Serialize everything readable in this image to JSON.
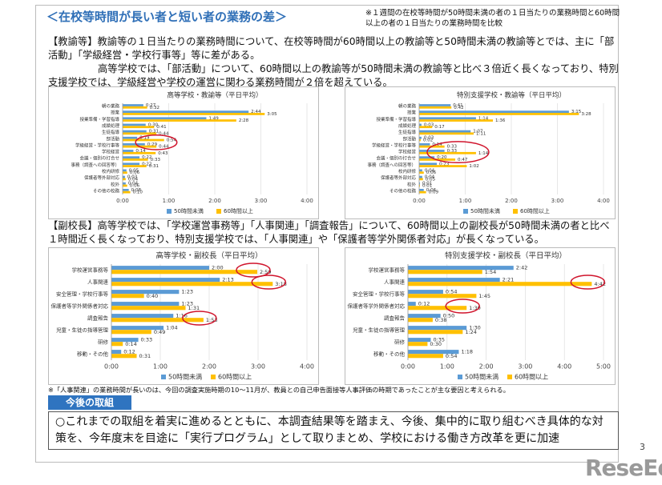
{
  "title": "＜在校等時間が長い者と短い者の業務の差＞",
  "note": "※１週間の在校等時間が50時間未満の者の１日当たりの業務時間と60時間以上の者の１日当たりの業務時間を比較",
  "paragraphs": [
    "【教諭等】教諭等の１日当たりの業務時間について、在校等時間が60時間以上の教諭等と50時間未満の教諭等とでは、主に「部活動」「学級経営・学校行事等」等に差がある。",
    "高等学校では、「部活動」について、60時間以上の教諭等が50時間未満の教諭等と比べ３倍近く長くなっており、特別支援学校では、学級経営や学校の運営に関わる業務時間が２倍を超えている。",
    "【副校長】高等学校では、「学校運営事務等」「人事関連」「調査報告」について、60時間以上の副校長が50時間未満の者と比べ１時間近く長くなっており、特別支援学校では、「人事関連」や「保護者等学外関係者対応」が長くなっている。"
  ],
  "footnote": "※「人事関連」の業務時間が長いのは、今回の調査実施時期の10～11月が、教員との自己申告面接等人事評価の時期であったことが主な要因と考えられる。",
  "section_heading": "今後の取組",
  "box_text": "○これまでの取組を着実に進めるとともに、本調査結果等を踏まえ、今後、集中的に取り組むべき具体的な対策を、今年度末を目途に「実行プログラム」として取りまとめ、学校における働き方改革を更に加速",
  "page_number": "3",
  "watermark": "ReseEd",
  "chart_data": [
    {
      "type": "bar",
      "orientation": "horizontal",
      "title": "高等学校・教諭等（平日平均）",
      "categories": [
        "朝の業務",
        "授業",
        "授業準備・学習指導",
        "成績処理",
        "生徒指導",
        "部活動",
        "学級経営・学校行事等",
        "学校経営",
        "会議・個別の打合せ",
        "事務（調査への回答等）",
        "校内研修",
        "保護者等外部対応",
        "校外",
        "その他の校務"
      ],
      "series": [
        {
          "name": "50時間未満",
          "color": "#5b9bd5",
          "values": [
            0.45,
            2.7333,
            1.8167,
            0.5,
            0.5167,
            0.3167,
            0.4833,
            0.2333,
            0.3667,
            0.3667,
            0.0833,
            0.05,
            0.0667,
            0.1333
          ],
          "value_labels": [
            "0:27",
            "2:44",
            "1:49",
            "0:30",
            "0:31",
            "0:19",
            "0:29",
            "0:14",
            "0:22",
            "0:22",
            "0:05",
            "0:03",
            "0:04",
            "0:08"
          ]
        },
        {
          "name": "60時間以上",
          "color": "#ffc000",
          "values": [
            0.5333,
            3.0833,
            2.4667,
            0.6833,
            0.7333,
            0.9,
            0.7333,
            0.7167,
            0.55,
            0.5167,
            0.1,
            0.0667,
            0.1,
            0.1667
          ],
          "value_labels": [
            "0:32",
            "3:05",
            "2:28",
            "0:41",
            "0:44",
            "0:54",
            "0:44",
            "0:43",
            "0:33",
            "0:31",
            "0:06",
            "0:04",
            "0:06",
            "0:10"
          ]
        }
      ],
      "xlim": [
        0,
        4
      ],
      "xticks": [
        {
          "value": 0,
          "label": "0:00"
        },
        {
          "value": 1,
          "label": "1:00"
        },
        {
          "value": 2,
          "label": "2:00"
        },
        {
          "value": 3,
          "label": "3:00"
        },
        {
          "value": 4,
          "label": "4:00"
        }
      ],
      "grid": true,
      "legend": "bottom"
    },
    {
      "type": "bar",
      "orientation": "horizontal",
      "title": "特別支援学校・教諭等（平日平均）",
      "categories": [
        "朝の業務",
        "授業",
        "授業準備・学習指導",
        "成績処理",
        "生徒指導",
        "部活動",
        "学級経営・学校行事等",
        "学校経営",
        "会議・個別の打合せ",
        "事務（調査への回答等）",
        "校内研修",
        "保護者等外部対応",
        "校外",
        "その他の校務"
      ],
      "series": [
        {
          "name": "50時間未満",
          "color": "#5b9bd5",
          "values": [
            0.6833,
            3.25,
            1.2333,
            0.05,
            1.1167,
            0.05,
            0.2333,
            0.55,
            0.3333,
            0.3833,
            0.0667,
            0.0667,
            0.0167,
            0.1
          ],
          "value_labels": [
            "0:41",
            "3:15",
            "1:14",
            "0:03",
            "1:07",
            "0:03",
            "0:14",
            "0:33",
            "0:20",
            "0:23",
            "0:04",
            "0:04",
            "0:01",
            "0:06"
          ]
        },
        {
          "name": "60時間以上",
          "color": "#ffc000",
          "values": [
            0.7,
            3.4667,
            1.6,
            0.2833,
            1.1833,
            0.0333,
            0.55,
            1.2333,
            0.7833,
            1.0333,
            0.1,
            0.0833,
            0.0167,
            0.15
          ],
          "value_labels": [
            "0:42",
            "3:28",
            "1:36",
            "0:17",
            "1:11",
            "0:02",
            "0:33",
            "1:14",
            "0:47",
            "1:02",
            "0:06",
            "0:05",
            "0:01",
            "0:09"
          ]
        }
      ],
      "xlim": [
        0,
        4
      ],
      "xticks": [
        {
          "value": 0,
          "label": "0:00"
        },
        {
          "value": 1,
          "label": "1:00"
        },
        {
          "value": 2,
          "label": "2:00"
        },
        {
          "value": 3,
          "label": "3:00"
        },
        {
          "value": 4,
          "label": "4:00"
        }
      ],
      "grid": true,
      "legend": "bottom"
    },
    {
      "type": "bar",
      "orientation": "horizontal",
      "title": "高等学校・副校長（平日平均）",
      "categories": [
        "学校運営事務等",
        "人事関連",
        "安全管理・学校行事等",
        "保護者等学外関係者対応",
        "調査報告",
        "児童・生徒の指導管理",
        "研修",
        "移動・その他"
      ],
      "series": [
        {
          "name": "50時間未満",
          "color": "#5b9bd5",
          "values": [
            2.0,
            2.2167,
            1.3833,
            1.3833,
            1.2667,
            1.0667,
            0.55,
            0.2
          ],
          "value_labels": [
            "2:00",
            "2:13",
            "1:23",
            "1:23",
            "1:16",
            "1:04",
            "0:33",
            "0:12"
          ]
        },
        {
          "name": "60時間以上",
          "color": "#ffc000",
          "values": [
            2.9833,
            3.3,
            0.6667,
            1.5167,
            1.8833,
            0.8167,
            0.2333,
            0.5167
          ],
          "value_labels": [
            "2:59",
            "3:18",
            "0:40",
            "1:31",
            "1:53",
            "0:49",
            "0:14",
            "0:31"
          ]
        }
      ],
      "xlim": [
        0,
        4
      ],
      "xticks": [
        {
          "value": 0,
          "label": "0:00"
        },
        {
          "value": 1,
          "label": "1:00"
        },
        {
          "value": 2,
          "label": "2:00"
        },
        {
          "value": 3,
          "label": "3:00"
        },
        {
          "value": 4,
          "label": "4:00"
        }
      ],
      "grid": true,
      "legend": "bottom"
    },
    {
      "type": "bar",
      "orientation": "horizontal",
      "title": "特別支援学校・副校長（平日平均）",
      "categories": [
        "学校運営事務等",
        "人事関連",
        "安全管理・学校行事等",
        "保護者等学外関係者対応",
        "調査報告",
        "児童・生徒の指導管理",
        "研修",
        "移動・その他"
      ],
      "series": [
        {
          "name": "50時間未満",
          "color": "#5b9bd5",
          "values": [
            2.7,
            2.35,
            0.9,
            0.2,
            0.8333,
            1.5,
            0.5833,
            1.3
          ],
          "value_labels": [
            "2:42",
            "2:21",
            "0:54",
            "0:12",
            "0:50",
            "1:30",
            "0:35",
            "1:18"
          ]
        },
        {
          "name": "60時間以上",
          "color": "#ffc000",
          "values": [
            1.9,
            4.7,
            1.75,
            1.5,
            0.6333,
            1.4,
            0.5,
            0.9
          ],
          "value_labels": [
            "1:54",
            "4:42",
            "1:45",
            "1:30",
            "0:38",
            "1:24",
            "0:30",
            "0:54"
          ]
        }
      ],
      "xlim": [
        0,
        5
      ],
      "xticks": [
        {
          "value": 0,
          "label": "0:00"
        },
        {
          "value": 1,
          "label": "1:00"
        },
        {
          "value": 2,
          "label": "2:00"
        },
        {
          "value": 3,
          "label": "3:00"
        },
        {
          "value": 4,
          "label": "4:00"
        },
        {
          "value": 5,
          "label": "5:00"
        }
      ],
      "grid": true,
      "legend": "bottom"
    }
  ]
}
